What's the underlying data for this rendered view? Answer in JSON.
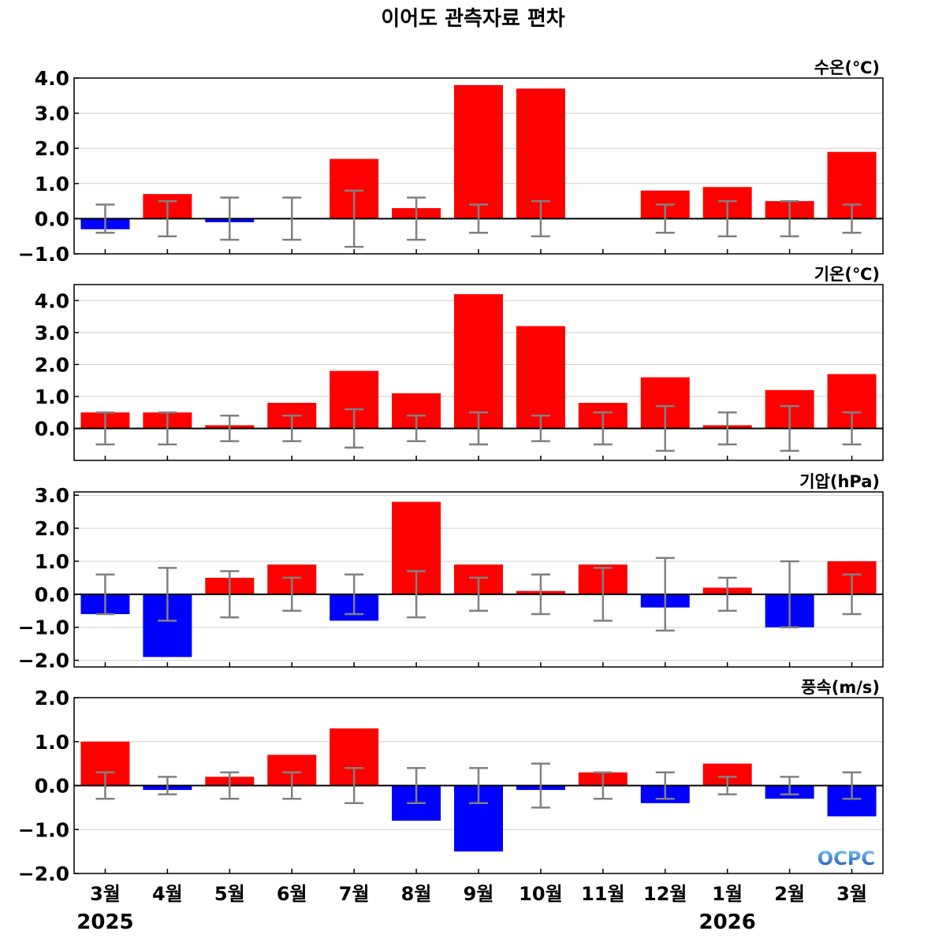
{
  "chart_data": {
    "type": "bar",
    "title": "이어도 관측자료 편차",
    "categories": [
      "3월",
      "4월",
      "5월",
      "6월",
      "7월",
      "8월",
      "9월",
      "10월",
      "11월",
      "12월",
      "1월",
      "2월",
      "3월"
    ],
    "year_labels": [
      {
        "text": "2025",
        "category_index": 0
      },
      {
        "text": "2026",
        "category_index": 10
      }
    ],
    "colors": {
      "positive": "#ff0000",
      "negative": "#0000ff",
      "error_bar": "#808080",
      "grid": "#d0d0d0"
    },
    "logo": "OCPC",
    "grid": true,
    "panels": [
      {
        "label": "수온(℃)",
        "ylim": [
          -1.0,
          4.0
        ],
        "yticks": [
          -1.0,
          0.0,
          1.0,
          2.0,
          3.0,
          4.0
        ],
        "ytick_labels": [
          "−1.0",
          "0.0",
          "1.0",
          "2.0",
          "3.0",
          "4.0"
        ],
        "values": [
          -0.3,
          0.7,
          -0.1,
          0.0,
          1.7,
          0.3,
          3.8,
          3.7,
          null,
          0.8,
          0.9,
          0.5,
          1.9
        ],
        "error_bars": [
          [
            -0.4,
            0.4
          ],
          [
            -0.5,
            0.5
          ],
          [
            -0.6,
            0.6
          ],
          [
            -0.6,
            0.6
          ],
          [
            -0.8,
            0.8
          ],
          [
            -0.6,
            0.6
          ],
          [
            -0.4,
            0.4
          ],
          [
            -0.5,
            0.5
          ],
          null,
          [
            -0.4,
            0.4
          ],
          [
            -0.5,
            0.5
          ],
          [
            -0.5,
            0.5
          ],
          [
            -0.4,
            0.4
          ]
        ]
      },
      {
        "label": "기온(℃)",
        "ylim": [
          -1.0,
          4.5
        ],
        "yticks": [
          0.0,
          1.0,
          2.0,
          3.0,
          4.0
        ],
        "ytick_labels": [
          "0.0",
          "1.0",
          "2.0",
          "3.0",
          "4.0"
        ],
        "values": [
          0.5,
          0.5,
          0.1,
          0.8,
          1.8,
          1.1,
          4.2,
          3.2,
          0.8,
          1.6,
          0.1,
          1.2,
          1.7
        ],
        "error_bars": [
          [
            -0.5,
            0.5
          ],
          [
            -0.5,
            0.5
          ],
          [
            -0.4,
            0.4
          ],
          [
            -0.4,
            0.4
          ],
          [
            -0.6,
            0.6
          ],
          [
            -0.4,
            0.4
          ],
          [
            -0.5,
            0.5
          ],
          [
            -0.4,
            0.4
          ],
          [
            -0.5,
            0.5
          ],
          [
            -0.7,
            0.7
          ],
          [
            -0.5,
            0.5
          ],
          [
            -0.7,
            0.7
          ],
          [
            -0.5,
            0.5
          ]
        ]
      },
      {
        "label": "기압(hPa)",
        "ylim": [
          -2.2,
          3.1
        ],
        "yticks": [
          -2.0,
          -1.0,
          0.0,
          1.0,
          2.0,
          3.0
        ],
        "ytick_labels": [
          "−2.0",
          "−1.0",
          "0.0",
          "1.0",
          "2.0",
          "3.0"
        ],
        "values": [
          -0.6,
          -1.9,
          0.5,
          0.9,
          -0.8,
          2.8,
          0.9,
          0.1,
          0.9,
          -0.4,
          0.2,
          -1.0,
          1.0
        ],
        "error_bars": [
          [
            -0.6,
            0.6
          ],
          [
            -0.8,
            0.8
          ],
          [
            -0.7,
            0.7
          ],
          [
            -0.5,
            0.5
          ],
          [
            -0.6,
            0.6
          ],
          [
            -0.7,
            0.7
          ],
          [
            -0.5,
            0.5
          ],
          [
            -0.6,
            0.6
          ],
          [
            -0.8,
            0.8
          ],
          [
            -1.1,
            1.1
          ],
          [
            -0.5,
            0.5
          ],
          [
            -1.0,
            1.0
          ],
          [
            -0.6,
            0.6
          ]
        ]
      },
      {
        "label": "풍속(m/s)",
        "ylim": [
          -2.0,
          2.0
        ],
        "yticks": [
          -2.0,
          -1.0,
          0.0,
          1.0,
          2.0
        ],
        "ytick_labels": [
          "−2.0",
          "−1.0",
          "0.0",
          "1.0",
          "2.0"
        ],
        "values": [
          1.0,
          -0.1,
          0.2,
          0.7,
          1.3,
          -0.8,
          -1.5,
          -0.1,
          0.3,
          -0.4,
          0.5,
          -0.3,
          -0.7
        ],
        "error_bars": [
          [
            -0.3,
            0.3
          ],
          [
            -0.2,
            0.2
          ],
          [
            -0.3,
            0.3
          ],
          [
            -0.3,
            0.3
          ],
          [
            -0.4,
            0.4
          ],
          [
            -0.4,
            0.4
          ],
          [
            -0.4,
            0.4
          ],
          [
            -0.5,
            0.5
          ],
          [
            -0.3,
            0.3
          ],
          [
            -0.3,
            0.3
          ],
          [
            -0.2,
            0.2
          ],
          [
            -0.2,
            0.2
          ],
          [
            -0.3,
            0.3
          ]
        ]
      }
    ]
  }
}
